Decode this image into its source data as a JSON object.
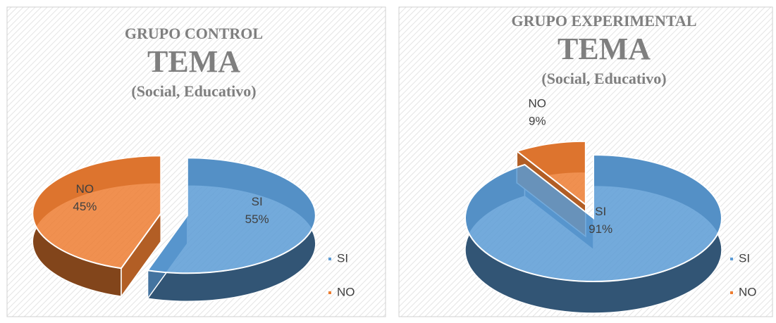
{
  "chart_data": [
    {
      "type": "pie",
      "title": [
        "GRUPO CONTROL",
        "TEMA",
        "(Social, Educativo)"
      ],
      "categories": [
        "SI",
        "NO"
      ],
      "values": [
        55,
        45
      ],
      "value_labels": [
        "55%",
        "45%"
      ],
      "colors": [
        "#5b9bd5",
        "#ed7d31"
      ],
      "legend": "right"
    },
    {
      "type": "pie",
      "title": [
        "GRUPO EXPERIMENTAL",
        "TEMA",
        "(Social, Educativo)"
      ],
      "categories": [
        "SI",
        "NO"
      ],
      "values": [
        91,
        9
      ],
      "value_labels": [
        "91%",
        "9%"
      ],
      "colors": [
        "#5b9bd5",
        "#ed7d31"
      ],
      "legend": "right"
    }
  ]
}
